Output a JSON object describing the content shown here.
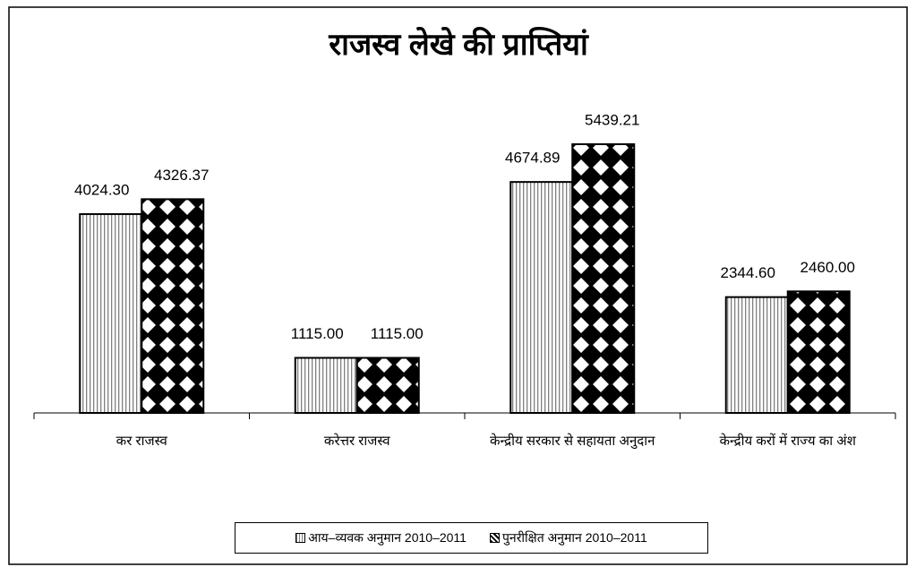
{
  "chart_data": {
    "type": "bar",
    "title": "राजस्व लेखे की प्राप्तियां",
    "categories": [
      "कर राजस्व",
      "करेत्तर राजस्व",
      "केन्द्रीय सरकार से सहायता अनुदान",
      "केन्द्रीय करों में राज्य का अंश"
    ],
    "series": [
      {
        "name": "आय–व्यवक अनुमान 2010–2011",
        "color": "#808080",
        "values": [
          4024.3,
          1115,
          4674.89,
          2344.6
        ],
        "value_labels": [
          "4024.30",
          "1115.00",
          "4674.89",
          "2344.60"
        ]
      },
      {
        "name": "पुनरीक्षित अनुमान 2010–2011",
        "color": "#000000",
        "values": [
          4326.37,
          1115,
          5439.21,
          2460
        ],
        "value_labels": [
          "4326.37",
          "1115.00",
          "5439.21",
          "2460.00"
        ]
      }
    ]
  }
}
